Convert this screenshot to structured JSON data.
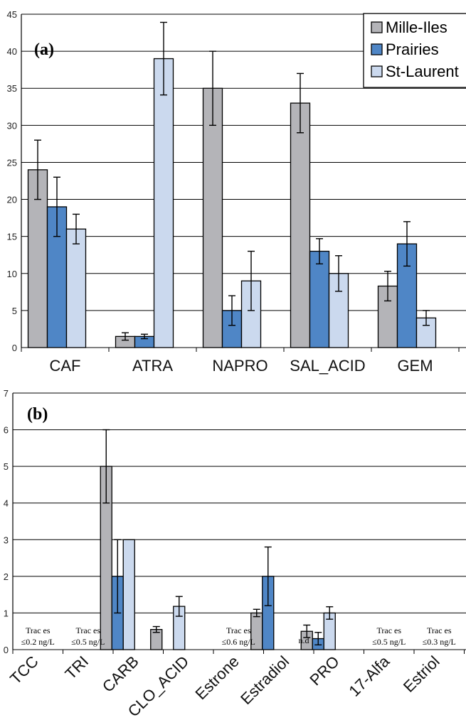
{
  "colors": {
    "Mille-Iles": "#b4b4b8",
    "Prairies": "#4f86c6",
    "St-Laurent": "#cbd9ee"
  },
  "legend": {
    "placement": "top-right",
    "entries": [
      "Mille-Iles",
      "Prairies",
      "St-Laurent"
    ]
  },
  "chart_data": [
    {
      "type": "bar",
      "panel_label": "(a)",
      "grid": true,
      "ylim": [
        0,
        45
      ],
      "yticks": [
        "0",
        "5",
        "10",
        "15",
        "20",
        "25",
        "30",
        "35",
        "40",
        "45"
      ],
      "categories": [
        "CAF",
        "ATRA",
        "NAPRO",
        "SAL_ACID",
        "GEM"
      ],
      "series": [
        {
          "name": "Mille-Iles",
          "values": [
            24,
            1.5,
            35,
            33,
            8.3
          ],
          "errors": [
            4,
            0.5,
            5,
            4,
            2
          ]
        },
        {
          "name": "Prairies",
          "values": [
            19,
            1.5,
            5,
            13,
            14
          ],
          "errors": [
            4,
            0.3,
            2,
            1.7,
            3
          ]
        },
        {
          "name": "St-Laurent",
          "values": [
            16,
            39,
            9,
            10,
            4
          ],
          "errors": [
            2,
            4.9,
            4,
            2.4,
            1
          ]
        }
      ]
    },
    {
      "type": "bar",
      "panel_label": "(b)",
      "grid": true,
      "ylim": [
        0,
        7
      ],
      "yticks": [
        "0",
        "1",
        "2",
        "3",
        "4",
        "5",
        "6",
        "7"
      ],
      "categories": [
        "TCC",
        "TRI",
        "CARB",
        "CLO_ACID",
        "Estrone",
        "Estradiol",
        "PRO",
        "17-Alfa",
        "Estriol"
      ],
      "series": [
        {
          "name": "Mille-Iles",
          "values": [
            null,
            null,
            5,
            0.55,
            null,
            1.0,
            0.5,
            null,
            null
          ],
          "errors": [
            null,
            null,
            1,
            0.08,
            null,
            0.1,
            0.17,
            null,
            null
          ]
        },
        {
          "name": "Prairies",
          "values": [
            null,
            null,
            2,
            null,
            null,
            2,
            0.3,
            null,
            null
          ],
          "errors": [
            null,
            null,
            1,
            null,
            null,
            0.8,
            0.17,
            null,
            null
          ]
        },
        {
          "name": "St-Laurent",
          "values": [
            null,
            null,
            3,
            1.18,
            null,
            null,
            1.0,
            null,
            null
          ],
          "errors": [
            null,
            null,
            0,
            0.27,
            null,
            null,
            0.17,
            null,
            null
          ]
        }
      ],
      "annotations": [
        {
          "category": "TCC",
          "lines": [
            "Trac es",
            "≤0.2 ng/L"
          ]
        },
        {
          "category": "TRI",
          "lines": [
            "Trac es",
            "≤0.5 ng/L"
          ]
        },
        {
          "category": "Estrone",
          "lines": [
            "Trac es",
            "≤0.6 ng/L"
          ]
        },
        {
          "category": "Estradiol",
          "lines": [
            "n.d"
          ]
        },
        {
          "category": "17-Alfa",
          "lines": [
            "Trac es",
            "≤0.5 ng/L"
          ]
        },
        {
          "category": "Estriol",
          "lines": [
            "Trac es",
            "≤0.3 ng/L"
          ]
        }
      ]
    }
  ]
}
